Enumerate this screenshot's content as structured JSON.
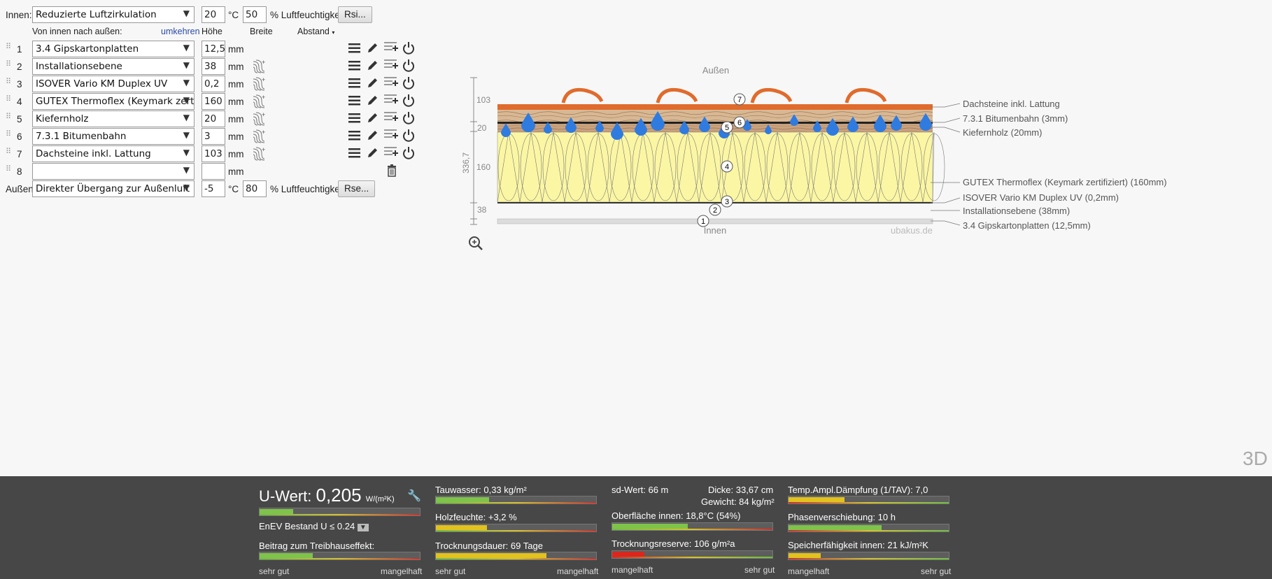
{
  "inner": {
    "label": "Innen:",
    "select": "Reduzierte Luftzirkulation",
    "temp": "20",
    "temp_unit": "°C",
    "humidity": "50",
    "humidity_unit": "% Luftfeuchtigkeit",
    "button": "Rsi..."
  },
  "header": {
    "direction": "Von innen nach außen:",
    "reverse": "umkehren",
    "height": "Höhe",
    "width": "Breite",
    "distance": "Abstand"
  },
  "layers": [
    {
      "no": "1",
      "name": "3.4 Gipskartonplatten",
      "thickness": "12,5",
      "unit": "mm"
    },
    {
      "no": "2",
      "name": "Installationsebene",
      "thickness": "38",
      "unit": "mm"
    },
    {
      "no": "3",
      "name": "ISOVER Vario KM Duplex UV",
      "thickness": "0,2",
      "unit": "mm"
    },
    {
      "no": "4",
      "name": "GUTEX Thermoflex (Keymark zertifiziert)",
      "thickness": "160",
      "unit": "mm"
    },
    {
      "no": "5",
      "name": "Kiefernholz",
      "thickness": "20",
      "unit": "mm"
    },
    {
      "no": "6",
      "name": "7.3.1 Bitumenbahn",
      "thickness": "3",
      "unit": "mm"
    },
    {
      "no": "7",
      "name": "Dachsteine inkl. Lattung",
      "thickness": "103",
      "unit": "mm"
    },
    {
      "no": "8",
      "name": "",
      "thickness": "",
      "unit": "mm"
    }
  ],
  "outer": {
    "label": "Außen:",
    "select": "Direkter Übergang zur Außenluft",
    "temp": "-5",
    "temp_unit": "°C",
    "humidity": "80",
    "humidity_unit": "% Luftfeuchtigkeit",
    "button": "Rse..."
  },
  "diagram": {
    "top_label": "Außen",
    "bottom_label": "Innen",
    "watermark": "ubakus.de",
    "total": "336,7",
    "dims": [
      "103",
      "20",
      "160",
      "38"
    ],
    "legend": [
      "Dachsteine inkl. Lattung",
      "7.3.1 Bitumenbahn (3mm)",
      "Kiefernholz (20mm)",
      "GUTEX Thermoflex (Keymark zertifiziert) (160mm)",
      "ISOVER Vario KM Duplex UV (0,2mm)",
      "Installationsebene (38mm)",
      "3.4 Gipskartonplatten (12,5mm)"
    ],
    "markers": [
      "1",
      "2",
      "3",
      "4",
      "5",
      "6",
      "7"
    ],
    "view3d": "3D"
  },
  "results": {
    "u_label": "U-Wert:",
    "u_value": "0,205",
    "u_unit": "W/(m²K)",
    "enev": "EnEV Bestand U ≤ 0.24",
    "greenhouse": "Beitrag zum Treibhauseffekt:",
    "tauwasser": "Tauwasser: 0,33 kg/m²",
    "holzfeuchte": "Holzfeuchte: +3,2 %",
    "trocknungsdauer": "Trocknungsdauer: 69 Tage",
    "sd": "sd-Wert: 66 m",
    "dicke": "Dicke: 33,67 cm",
    "gewicht": "Gewicht: 84 kg/m²",
    "oberflaeche": "Oberfläche innen: 18,8°C (54%)",
    "trocknungsreserve": "Trocknungsreserve: 106 g/m²a",
    "temp_ampl": "Temp.Ampl.Dämpfung (1/TAV): 7,0",
    "phase": "Phasenverschiebung: 10 h",
    "speicher": "Speicherfähigkeit innen: 21 kJ/m²K",
    "scale_good": "sehr gut",
    "scale_bad": "mangelhaft",
    "fills": {
      "u": 0.21,
      "tau": 0.33,
      "holz": 0.32,
      "dauer": 0.69,
      "ober": 0.47,
      "reserve": 0.2,
      "ampl": 0.35,
      "phase": 0.58,
      "speicher": 0.2,
      "green": 0.33
    },
    "colors": {
      "green": "#7fc34b",
      "yellow": "#e2c21e",
      "red": "#d9271e"
    }
  }
}
